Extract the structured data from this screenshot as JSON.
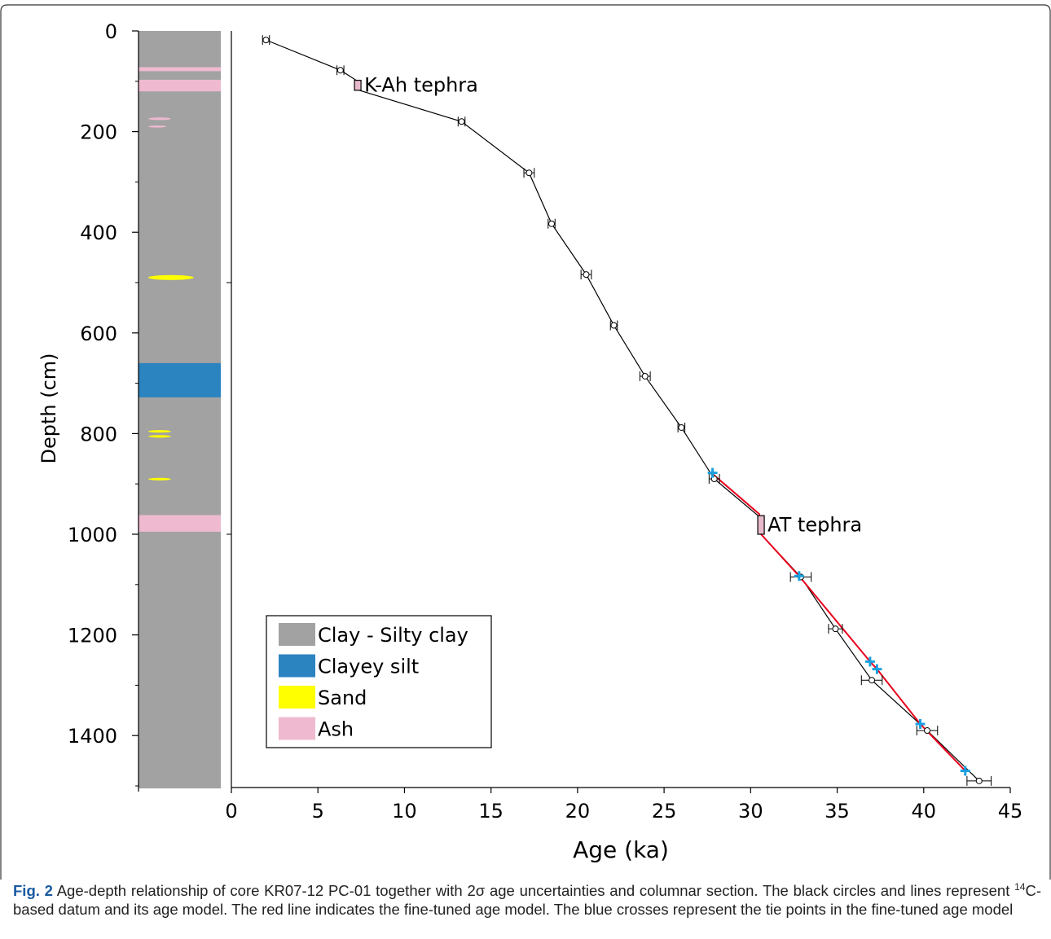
{
  "chart_data": {
    "type": "line",
    "xlabel": "Age (ka)",
    "ylabel": "Depth (cm)",
    "xlim": [
      0,
      45
    ],
    "ylim": [
      1500,
      0
    ],
    "xticks": [
      0,
      5,
      10,
      15,
      20,
      25,
      30,
      35,
      40,
      45
    ],
    "yticks": [
      0,
      200,
      400,
      600,
      800,
      1000,
      1200,
      1400
    ],
    "yminorticks": [
      100,
      300,
      500,
      700,
      900,
      1100,
      1300,
      1500
    ],
    "plot_yticks": [
      500,
      1000
    ],
    "datum": {
      "color": "#000000",
      "x": [
        2.0,
        6.3,
        13.3,
        17.2,
        18.5,
        20.5,
        22.1,
        23.9,
        26.0,
        27.9,
        32.9,
        34.9,
        37.0,
        40.2,
        43.2
      ],
      "y": [
        18,
        78,
        180,
        282,
        383,
        484,
        585,
        686,
        788,
        890,
        1085,
        1188,
        1290,
        1390,
        1490
      ],
      "xerr": [
        0.2,
        0.2,
        0.2,
        0.3,
        0.2,
        0.3,
        0.2,
        0.3,
        0.2,
        0.3,
        0.6,
        0.4,
        0.6,
        0.6,
        0.7
      ]
    },
    "age_model": {
      "color": "#000000",
      "x": [
        2.0,
        6.3,
        7.3,
        7.3,
        13.3,
        17.2,
        18.5,
        20.5,
        22.1,
        23.9,
        26.0,
        27.9,
        30.5,
        30.6,
        32.9,
        34.9,
        37.0,
        40.2,
        43.2
      ],
      "y": [
        18,
        78,
        100,
        117,
        180,
        282,
        383,
        484,
        585,
        686,
        788,
        890,
        965,
        1000,
        1085,
        1188,
        1290,
        1390,
        1490
      ]
    },
    "fine_tuned": {
      "color": "#e8001c",
      "x": [
        27.8,
        30.5,
        30.6,
        32.8,
        36.9,
        37.3,
        39.8,
        42.4
      ],
      "y": [
        880,
        960,
        1000,
        1083,
        1253,
        1268,
        1377,
        1470
      ]
    },
    "tie_points": {
      "color": "#1aa0e0",
      "x": [
        27.8,
        32.8,
        36.9,
        37.3,
        39.8,
        42.4
      ],
      "y": [
        878,
        1083,
        1253,
        1268,
        1377,
        1470
      ]
    },
    "tephras": [
      {
        "label": "K-Ah tephra",
        "x": 7.3,
        "depth_top": 98,
        "depth_bottom": 118,
        "color": "#e8b9cc"
      },
      {
        "label": "AT tephra",
        "x": 30.6,
        "depth_top": 963,
        "depth_bottom": 1000,
        "color": "#e8b9cc"
      }
    ],
    "column": {
      "top": 0,
      "bottom": 1505,
      "base": 0,
      "layers": [
        {
          "lithology": 3,
          "top": 72,
          "bottom": 80,
          "shape": "band"
        },
        {
          "lithology": 3,
          "top": 97,
          "bottom": 120,
          "shape": "band"
        },
        {
          "lithology": 3,
          "top": 172,
          "bottom": 177,
          "shape": "lens"
        },
        {
          "lithology": 3,
          "top": 188,
          "bottom": 192,
          "shape": "lens"
        },
        {
          "lithology": 2,
          "top": 485,
          "bottom": 495,
          "shape": "lens"
        },
        {
          "lithology": 1,
          "top": 660,
          "bottom": 728,
          "shape": "band"
        },
        {
          "lithology": 2,
          "top": 793,
          "bottom": 798,
          "shape": "lens"
        },
        {
          "lithology": 2,
          "top": 803,
          "bottom": 808,
          "shape": "lens"
        },
        {
          "lithology": 2,
          "top": 888,
          "bottom": 893,
          "shape": "lens"
        },
        {
          "lithology": 3,
          "top": 962,
          "bottom": 995,
          "shape": "band"
        }
      ]
    },
    "legend": [
      {
        "label": "Clay - Silty clay",
        "color": "#a2a2a2"
      },
      {
        "label": "Clayey silt",
        "color": "#2b83c0"
      },
      {
        "label": "Sand",
        "color": "#ffff00"
      },
      {
        "label": "Ash",
        "color": "#efbad0"
      }
    ]
  },
  "caption": {
    "label": "Fig. 2",
    "part1": "Age-depth relationship of core KR07-12 PC-01 together with 2σ age uncertainties and columnar section. The black circles and lines represent",
    "superscript": "14",
    "part2": "C-based datum and its age model. The red line indicates the fine-tuned age model. The blue crosses represent the tie points in the fine-tuned age model"
  }
}
